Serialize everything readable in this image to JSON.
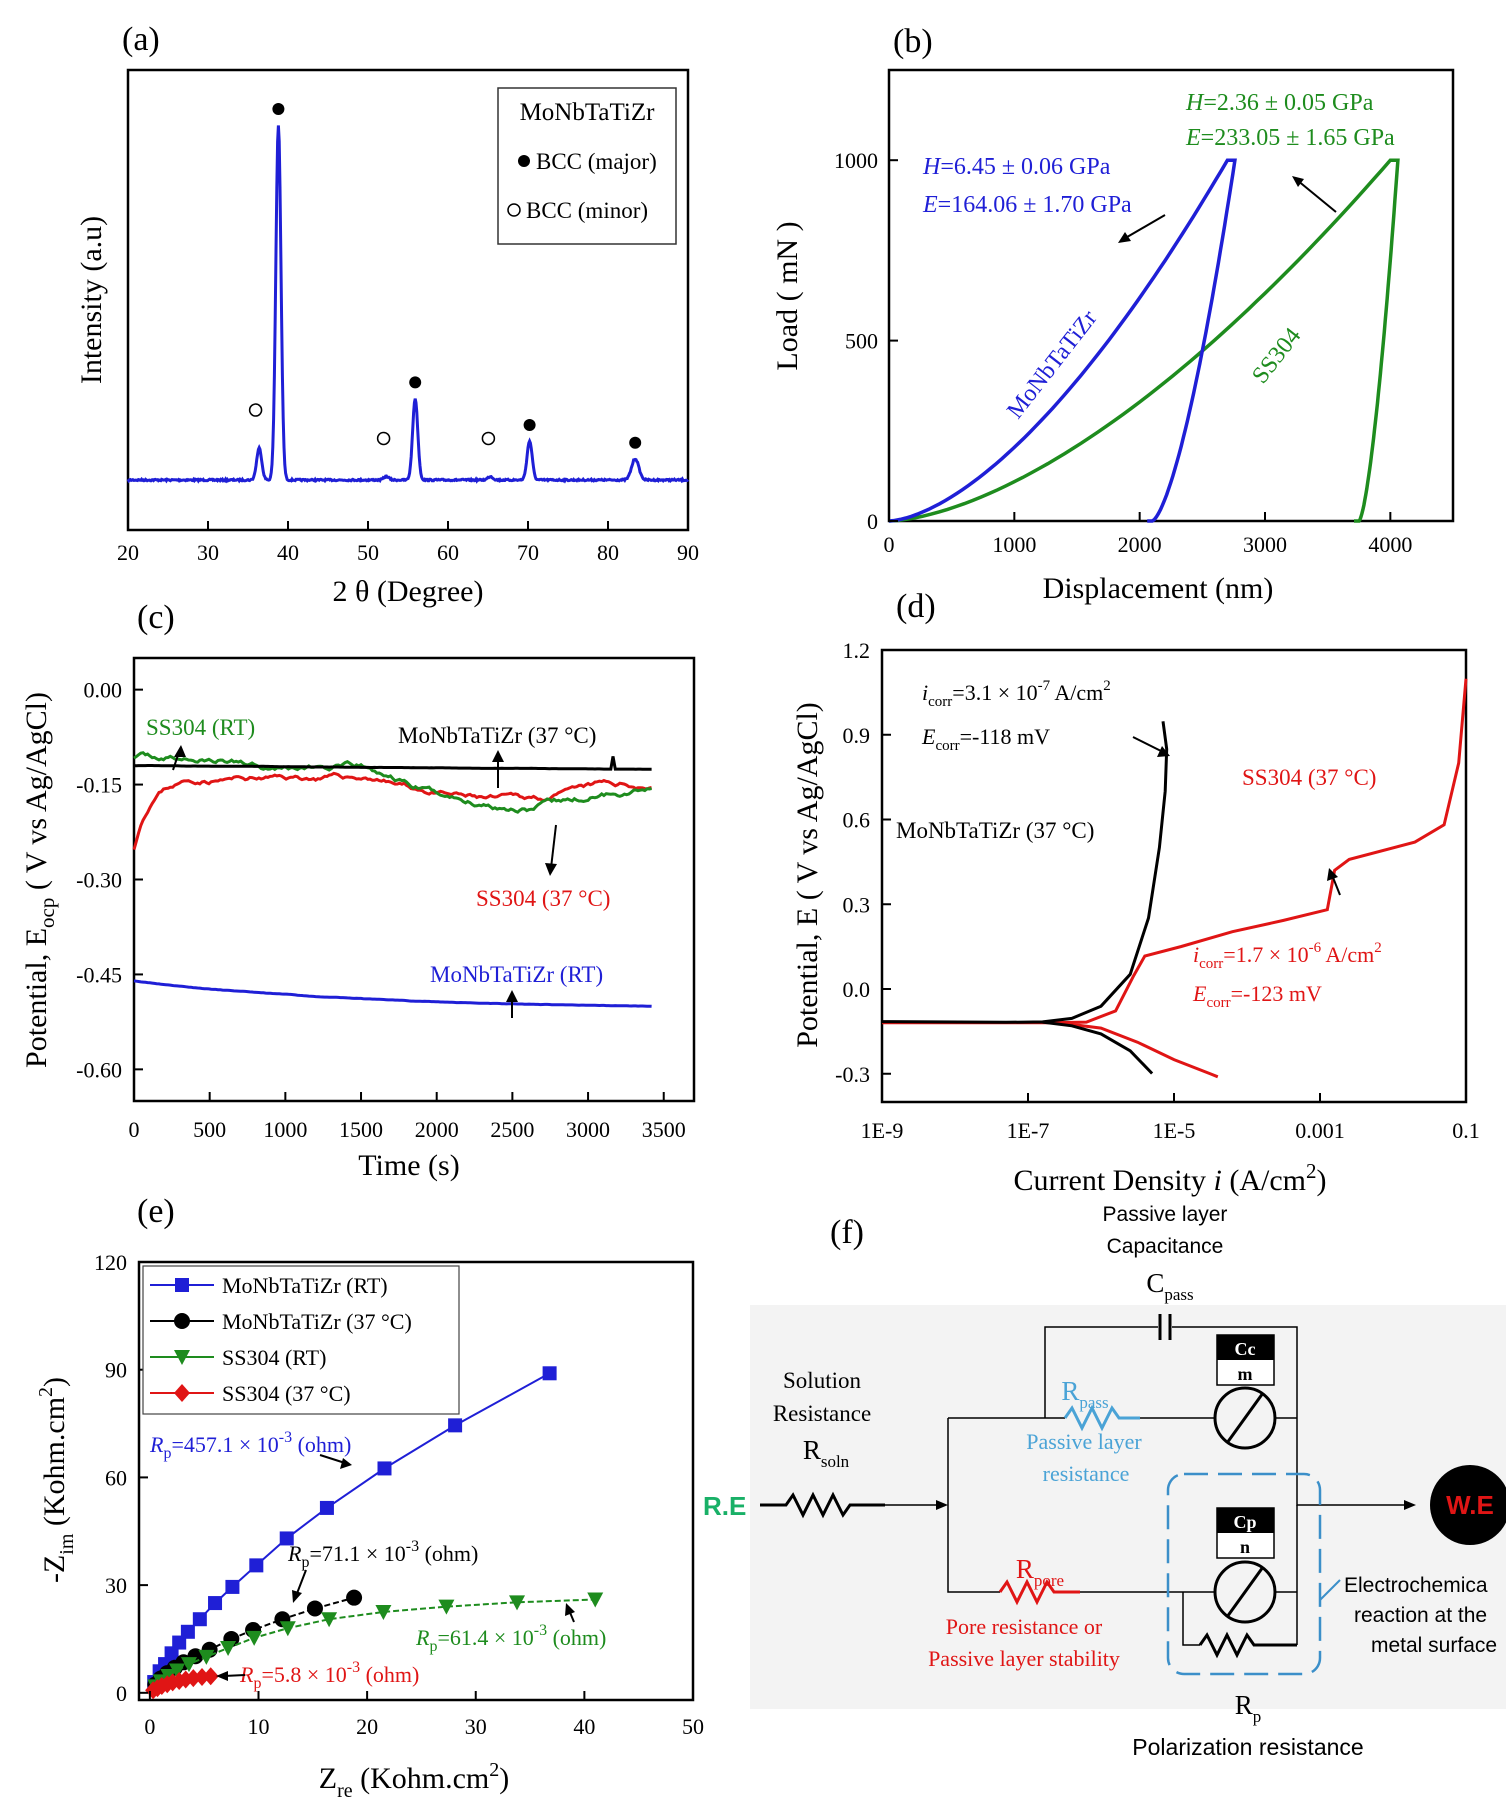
{
  "chart_data": [
    {
      "panel": "(a)",
      "type": "line",
      "xlabel": "2 θ (Degree)",
      "ylabel": "Intensity (a.u)",
      "xlim": [
        20,
        90
      ],
      "xticks": [
        "20",
        "30",
        "40",
        "50",
        "60",
        "70",
        "80",
        "90"
      ],
      "legend": {
        "title": "MoNbTaTiZr",
        "entries": [
          "BCC (major)",
          "BCC (minor)"
        ],
        "position": "top-right"
      },
      "series": [
        {
          "name": "MoNbTaTiZr",
          "color": "#1f1fd6",
          "peaks": [
            [
              36.4,
              9
            ],
            [
              38.8,
              100
            ],
            [
              52.3,
              1
            ],
            [
              55.9,
              23
            ],
            [
              65.3,
              1
            ],
            [
              70.2,
              11
            ],
            [
              83.4,
              6
            ]
          ]
        }
      ],
      "markers_major": [
        38.8,
        55.9,
        70.2,
        83.4
      ],
      "markers_minor": [
        36.2,
        52.2,
        65.3
      ]
    },
    {
      "panel": "(b)",
      "type": "line",
      "xlabel": "Displacement (nm)",
      "ylabel": "Load ( mN )",
      "xlim": [
        0,
        4500
      ],
      "ylim": [
        0,
        1250
      ],
      "xticks": [
        "0",
        "1000",
        "2000",
        "3000",
        "4000"
      ],
      "yticks": [
        "0",
        "500",
        "1000"
      ],
      "series": [
        {
          "name": "MoNbTaTiZr",
          "color": "#1f1fd6",
          "max_depth": 2700,
          "max_load": 1000,
          "residual_depth": 2100
        },
        {
          "name": "SS304",
          "color": "#1e8c1e",
          "max_depth": 4000,
          "max_load": 1000,
          "residual_depth": 3750
        }
      ],
      "annotations": [
        {
          "prefix": "H",
          "text": "=6.45 ± 0.06 GPa",
          "color": "#1f1fd6"
        },
        {
          "prefix": "E",
          "text": "=164.06 ± 1.70 GPa",
          "color": "#1f1fd6"
        },
        {
          "prefix": "H",
          "text": "=2.36 ± 0.05 GPa",
          "color": "#1e8c1e"
        },
        {
          "prefix": "E",
          "text": "=233.05 ± 1.65 GPa",
          "color": "#1e8c1e"
        }
      ]
    },
    {
      "panel": "(c)",
      "type": "line",
      "xlabel": "Time (s)",
      "ylabel_main": "Potential, E",
      "ylabel_sub": "ocp",
      "ylabel_tail": "( V vs Ag/AgCl)",
      "xlim": [
        0,
        3700
      ],
      "ylim": [
        -0.65,
        0.05
      ],
      "xticks": [
        "0",
        "500",
        "1000",
        "1500",
        "2000",
        "2500",
        "3000",
        "3500"
      ],
      "yticks": [
        "0.00",
        "-0.15",
        "-0.30",
        "-0.45",
        "-0.60"
      ],
      "series": [
        {
          "name": "SS304 (RT)",
          "color": "#1e8c1e",
          "start": -0.11,
          "end": -0.14
        },
        {
          "name": "MoNbTaTiZr (37 °C)",
          "color": "#000000",
          "start": -0.12,
          "end": -0.125
        },
        {
          "name": "SS304 (37 °C)",
          "color": "#e01515",
          "start": -0.25,
          "end": -0.17
        },
        {
          "name": "MoNbTaTiZr (RT)",
          "color": "#1f1fd6",
          "start": -0.46,
          "end": -0.505
        }
      ]
    },
    {
      "panel": "(d)",
      "type": "line",
      "xlabel_main": "Current Density",
      "xlabel_var": "i",
      "xlabel_unit": "(A/cm",
      "xlabel_sup": "2",
      "ylabel": "Potential, E ( V vs Ag/AgCl)",
      "xscale": "log",
      "xlim": [
        1e-09,
        0.1
      ],
      "ylim": [
        -0.4,
        1.2
      ],
      "xticks": [
        "1E-9",
        "1E-7",
        "1E-5",
        "0.001",
        "0.1"
      ],
      "yticks": [
        "1.2",
        "0.9",
        "0.6",
        "0.3",
        "0.0",
        "-0.3"
      ],
      "series": [
        {
          "name": "MoNbTaTiZr (37 °C)",
          "color": "#000000",
          "i_corr": 3.1e-07,
          "E_corr": -0.118
        },
        {
          "name": "SS304 (37 °C)",
          "color": "#e01515",
          "i_corr": 1.7e-06,
          "E_corr": -0.123
        }
      ],
      "annotations": [
        {
          "base": "i",
          "sub": "corr",
          "text": "=3.1 × 10",
          "sup": "-7",
          "unit": " A/cm",
          "unit_sup": "2"
        },
        {
          "base": "E",
          "sub": "corr",
          "text": "=-118 mV"
        },
        {
          "base": "i",
          "sub": "corr",
          "text": "=1.7 × 10",
          "sup": "-6",
          "unit": " A/cm",
          "unit_sup": "2"
        },
        {
          "base": "E",
          "sub": "corr",
          "text": "=-123 mV"
        }
      ]
    },
    {
      "panel": "(e)",
      "type": "scatter",
      "xlabel_main": "Z",
      "xlabel_sub": "re",
      "xlabel_unit": "(Kohm.cm",
      "xlabel_sup": "2",
      "ylabel_main": "-Z",
      "ylabel_sub": "im",
      "ylabel_unit": "(Kohm.cm",
      "ylabel_sup": "2",
      "xlim": [
        -1,
        50
      ],
      "ylim": [
        -2,
        120
      ],
      "xticks": [
        "0",
        "10",
        "20",
        "30",
        "40",
        "50"
      ],
      "yticks": [
        "0",
        "30",
        "60",
        "90",
        "120"
      ],
      "series": [
        {
          "name": "MoNbTaTiZr (RT)",
          "color": "#1f1fd6",
          "marker": "square",
          "x": [
            0.4,
            0.9,
            1.4,
            2.0,
            2.7,
            3.5,
            4.6,
            6.0,
            7.6,
            9.8,
            12.6,
            16.3,
            21.6,
            28.1,
            36.8
          ],
          "y": [
            3,
            6,
            8,
            11,
            14,
            17,
            20.5,
            25,
            29.5,
            35.5,
            43,
            51.5,
            62.5,
            74.5,
            89
          ]
        },
        {
          "name": "MoNbTaTiZr (37 °C)",
          "color": "#000000",
          "marker": "circle",
          "x": [
            0.5,
            1.0,
            1.6,
            2.3,
            3.1,
            4.2,
            5.5,
            7.5,
            9.5,
            12.2,
            15.2,
            18.8
          ],
          "y": [
            2.3,
            4,
            5.5,
            7,
            8.5,
            10.2,
            12,
            15,
            17.5,
            20.5,
            23.5,
            26.5
          ]
        },
        {
          "name": "SS304 (RT)",
          "color": "#1e8c1e",
          "marker": "triangle-down",
          "x": [
            0.5,
            1.0,
            1.7,
            2.5,
            3.6,
            5.2,
            7.2,
            9.6,
            12.7,
            16.5,
            21.5,
            27.3,
            33.8,
            41.0
          ],
          "y": [
            1.8,
            3.2,
            4.7,
            6.2,
            8,
            10,
            12.5,
            15.3,
            18,
            20.5,
            22.5,
            24,
            25.2,
            26
          ]
        },
        {
          "name": "SS304 (37 °C)",
          "color": "#e01515",
          "marker": "diamond",
          "x": [
            0.3,
            0.7,
            1.1,
            1.6,
            2.1,
            2.7,
            3.3,
            4.0,
            4.8,
            5.6
          ],
          "y": [
            0.7,
            1.3,
            1.9,
            2.4,
            2.9,
            3.3,
            3.7,
            4.1,
            4.4,
            4.6
          ]
        }
      ],
      "annotations": [
        {
          "base": "R",
          "sub": "p",
          "text": "=457.1 × 10",
          "sup": "-3",
          "unit": " (ohm)",
          "color": "#1f1fd6"
        },
        {
          "base": "R",
          "sub": "p",
          "text": "=71.1 × 10",
          "sup": "-3",
          "unit": " (ohm)",
          "color": "#000000"
        },
        {
          "base": "R",
          "sub": "p",
          "text": "=61.4 × 10",
          "sup": "-3",
          "unit": " (ohm)",
          "color": "#1e8c1e"
        },
        {
          "base": "R",
          "sub": "p",
          "text": "=5.8 × 10",
          "sup": "-3",
          "unit": " (ohm)",
          "color": "#e01515"
        }
      ]
    }
  ],
  "circuit": {
    "panel": "(f)",
    "cap_title_line1": "Passive layer",
    "cap_title_line2": "Capacitance",
    "cpass_base": "C",
    "cpass_sub": "pass",
    "solution_line1": "Solution",
    "solution_line2": "Resistance",
    "rsoln_base": "R",
    "rsoln_sub": "soln",
    "re_label": "R.E",
    "we_label": "W.E",
    "rpass_base": "R",
    "rpass_sub": "pass",
    "rpass_line1": "Passive layer",
    "rpass_line2": "resistance",
    "cc_top": "Cc",
    "cc_bottom": "m",
    "cp_top": "Cp",
    "cp_bottom": "n",
    "rpore_base": "R",
    "rpore_sub": "pore",
    "pore_line1": "Pore resistance or",
    "pore_line2": "Passive layer stability",
    "echem_line1": "Electrochemica",
    "echem_line2": "reaction at the",
    "echem_line3": "metal surface",
    "rp_base": "R",
    "rp_sub": "p",
    "polarization_label": "Polarization resistance"
  },
  "colors": {
    "blue": "#1f1fd6",
    "green": "#1e8c1e",
    "red": "#e01515",
    "black": "#000000",
    "cyan": "#4aa3d6",
    "dashed": "#3b8fc9"
  }
}
